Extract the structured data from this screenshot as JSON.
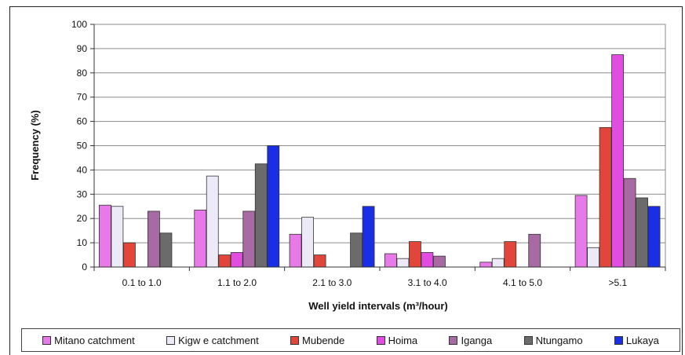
{
  "chart_data": {
    "type": "bar",
    "xlabel": "Well yield intervals (m³/hour)",
    "ylabel": "Frequency (%)",
    "ylim": [
      0,
      100
    ],
    "yticks": [
      0,
      10,
      20,
      30,
      40,
      50,
      60,
      70,
      80,
      90,
      100
    ],
    "grid": true,
    "legend_position": "bottom",
    "categories": [
      "0.1 to 1.0",
      "1.1 to 2.0",
      "2.1 to 3.0",
      "3.1 to 4.0",
      "4.1 to 5.0",
      ">5.1"
    ],
    "series": [
      {
        "name": "Mitano catchment",
        "color": "#e879e8",
        "values": [
          25.5,
          23.5,
          13.5,
          5.5,
          2,
          29.5
        ]
      },
      {
        "name": "Kigw e catchment",
        "color": "#eceaf7",
        "values": [
          25,
          37.5,
          20.5,
          3.5,
          3.5,
          8
        ]
      },
      {
        "name": "Mubende",
        "color": "#e2463a",
        "values": [
          10,
          5,
          5,
          10.5,
          10.5,
          57.5
        ]
      },
      {
        "name": "Hoima",
        "color": "#e14ce1",
        "values": [
          0,
          6,
          0,
          6,
          0,
          87.5
        ]
      },
      {
        "name": "Iganga",
        "color": "#a86aa3",
        "values": [
          23,
          23,
          0,
          4.5,
          13.5,
          36.5
        ]
      },
      {
        "name": "Ntungamo",
        "color": "#6b6b6b",
        "values": [
          14,
          42.5,
          14,
          0,
          0,
          28.5
        ]
      },
      {
        "name": "Lukaya",
        "color": "#1a2ee6",
        "values": [
          0,
          50,
          25,
          0,
          0,
          25
        ]
      }
    ]
  }
}
